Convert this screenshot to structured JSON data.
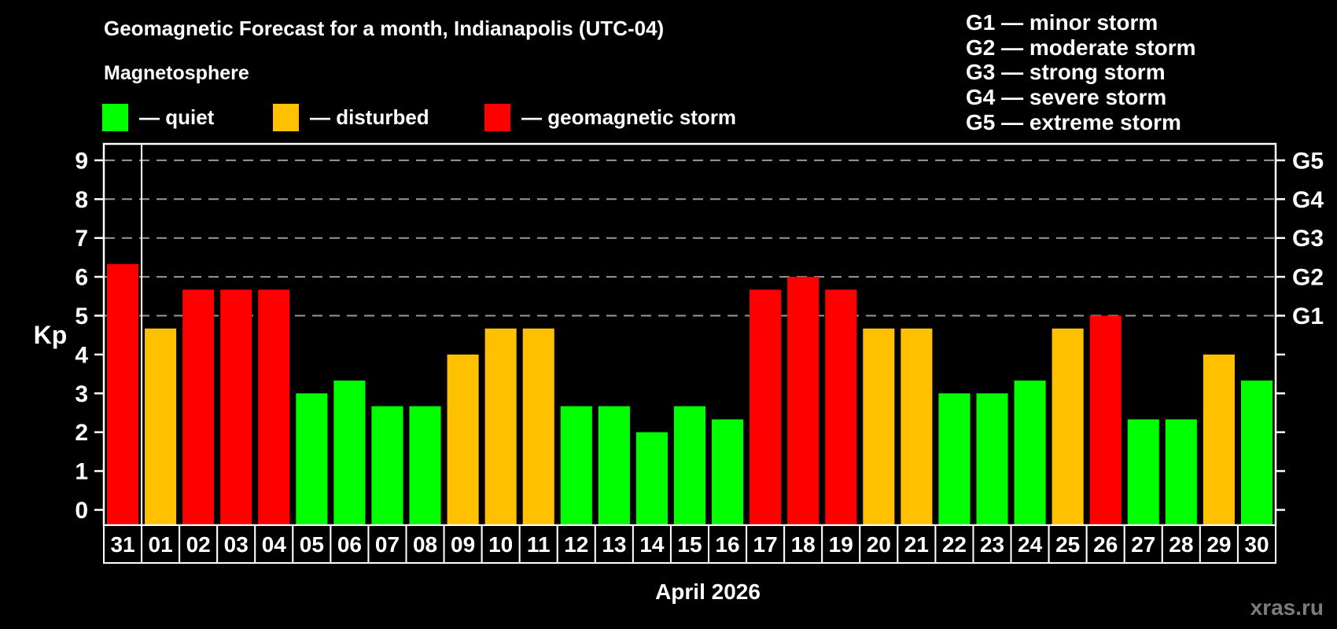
{
  "header": {
    "title": "Geomagnetic Forecast for a month, Indianapolis (UTC-04)",
    "subtitle": "Magnetosphere"
  },
  "legend": {
    "items": [
      {
        "key": "quiet",
        "label": "— quiet"
      },
      {
        "key": "disturbed",
        "label": "— disturbed"
      },
      {
        "key": "storm",
        "label": "— geomagnetic storm"
      }
    ]
  },
  "g_legend": [
    "G1 — minor storm",
    "G2 — moderate storm",
    "G3 — strong storm",
    "G4 — severe storm",
    "G5 — extreme storm"
  ],
  "colors": {
    "quiet": "#00ff00",
    "disturbed": "#ffc000",
    "storm": "#ff0000",
    "grid": "#999999",
    "axis": "#ffffff",
    "background": "#000000",
    "watermark": "#7b7b7b"
  },
  "chart_data": {
    "type": "bar",
    "title": "Geomagnetic Forecast for a month, Indianapolis (UTC-04)",
    "ylabel": "Kp",
    "xlabel": "April 2026",
    "ylim": [
      0,
      9
    ],
    "y_ticks": [
      0,
      1,
      2,
      3,
      4,
      5,
      6,
      7,
      8,
      9
    ],
    "grid": "horizontal dashed lines at Kp 5,6,7,8,9",
    "legend_position": "top",
    "categories": [
      "31",
      "01",
      "02",
      "03",
      "04",
      "05",
      "06",
      "07",
      "08",
      "09",
      "10",
      "11",
      "12",
      "13",
      "14",
      "15",
      "16",
      "17",
      "18",
      "19",
      "20",
      "21",
      "22",
      "23",
      "24",
      "25",
      "26",
      "27",
      "28",
      "29",
      "30"
    ],
    "values": [
      6.33,
      4.67,
      5.67,
      5.67,
      5.67,
      3,
      3.33,
      2.67,
      2.67,
      4,
      4.67,
      4.67,
      2.67,
      2.67,
      2,
      2.67,
      2.33,
      5.67,
      6,
      5.67,
      4.67,
      4.67,
      3,
      3,
      3.33,
      4.67,
      5,
      2.33,
      2.33,
      4,
      3.33
    ],
    "statuses": [
      "storm",
      "disturbed",
      "storm",
      "storm",
      "storm",
      "quiet",
      "quiet",
      "quiet",
      "quiet",
      "disturbed",
      "disturbed",
      "disturbed",
      "quiet",
      "quiet",
      "quiet",
      "quiet",
      "quiet",
      "storm",
      "storm",
      "storm",
      "disturbed",
      "disturbed",
      "quiet",
      "quiet",
      "quiet",
      "disturbed",
      "storm",
      "quiet",
      "quiet",
      "disturbed",
      "quiet"
    ],
    "separator_after_index": 0,
    "right_axis": {
      "labels": [
        "G1",
        "G2",
        "G3",
        "G4",
        "G5"
      ],
      "at_values": [
        5,
        6,
        7,
        8,
        9
      ]
    }
  },
  "footer": {
    "month_label": "April 2026",
    "watermark": "xras.ru"
  }
}
